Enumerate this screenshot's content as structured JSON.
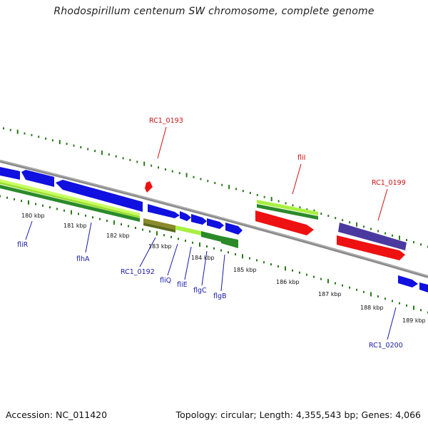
{
  "title": "Rhodospirillum centenum SW chromosome, complete genome",
  "footer": {
    "accession": "Accession: NC_011420",
    "topology": "Topology: circular; Length: 4,355,543 bp; Genes: 4,066"
  },
  "ticks": [
    "180 kbp",
    "181 kbp",
    "182 kbp",
    "183 kbp",
    "184 kbp",
    "185 kbp",
    "186 kbp",
    "187 kbp",
    "188 kbp",
    "189 kbp"
  ],
  "gene_labels": [
    {
      "name": "fliR",
      "color": "blue"
    },
    {
      "name": "flhA",
      "color": "blue"
    },
    {
      "name": "RC1_0192",
      "color": "blue"
    },
    {
      "name": "fliQ",
      "color": "blue"
    },
    {
      "name": "fliE",
      "color": "blue"
    },
    {
      "name": "flgC",
      "color": "blue"
    },
    {
      "name": "flgB",
      "color": "blue"
    },
    {
      "name": "RC1_0200",
      "color": "blue"
    },
    {
      "name": "RC1_0193",
      "color": "red"
    },
    {
      "name": "fliI",
      "color": "red"
    },
    {
      "name": "RC1_0199",
      "color": "red"
    }
  ],
  "colors": {
    "forward_cds": "#1010e0",
    "light_green_track": "#a8f040",
    "dark_green_track": "#2a8a2a",
    "red_feature": "#ee1111",
    "purple_feature": "#4a3aa0",
    "backbone": "#888888",
    "tick_green": "#2a7a1a",
    "blue_label": "#1a1aa8",
    "red_label": "#cc1111"
  }
}
